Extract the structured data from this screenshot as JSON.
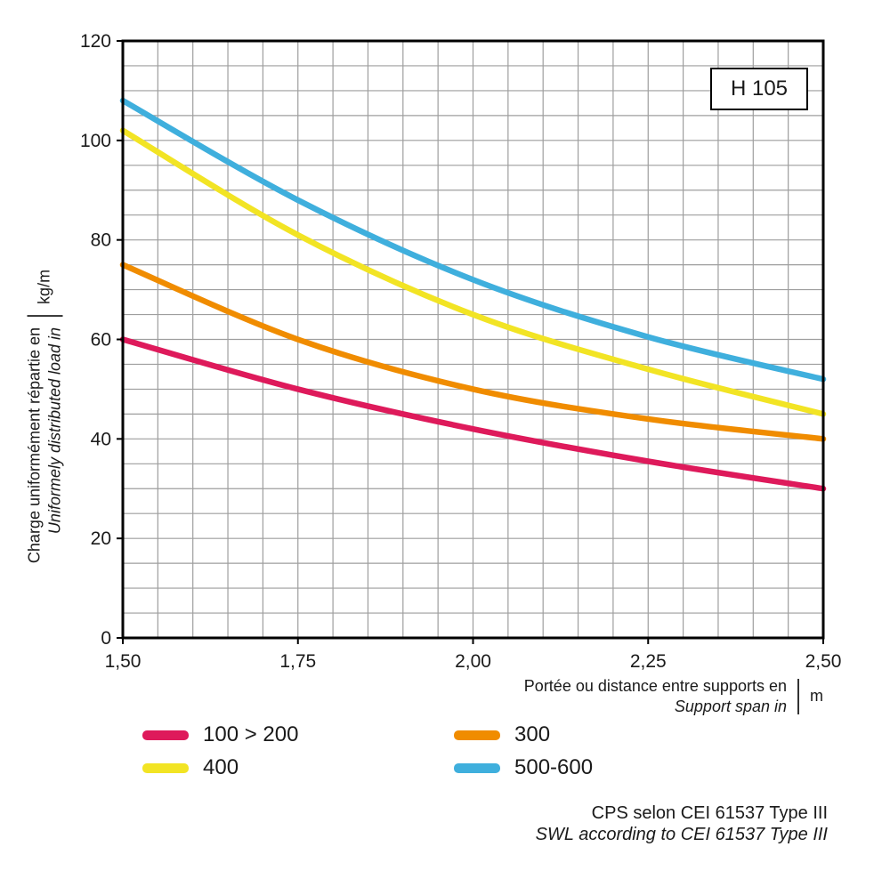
{
  "chart_data": {
    "type": "line",
    "x": [
      1.5,
      1.75,
      2.0,
      2.25,
      2.5
    ],
    "series": [
      {
        "name": "100 > 200",
        "color": "#de1a5b",
        "values": [
          60,
          50,
          42,
          35.5,
          30
        ]
      },
      {
        "name": "300",
        "color": "#f08c00",
        "values": [
          75,
          60,
          50,
          44,
          40
        ]
      },
      {
        "name": "400",
        "color": "#f2e424",
        "values": [
          102,
          81,
          65,
          54,
          45
        ]
      },
      {
        "name": "500-600",
        "color": "#3fafdd",
        "values": [
          108,
          88,
          72,
          60.5,
          52
        ]
      }
    ],
    "title": "H 105",
    "xlabel": "Portée ou distance entre supports en / Support span in (m)",
    "ylabel": "Charge uniformément répartie en / Uniformely distributed load in (kg/m)",
    "xlim": [
      1.5,
      2.5
    ],
    "ylim": [
      0,
      120
    ],
    "x_ticks": [
      {
        "v": 1.5,
        "label": "1,50"
      },
      {
        "v": 1.75,
        "label": "1,75"
      },
      {
        "v": 2.0,
        "label": "2,00"
      },
      {
        "v": 2.25,
        "label": "2,25"
      },
      {
        "v": 2.5,
        "label": "2,50"
      }
    ],
    "y_ticks": [
      {
        "v": 0,
        "label": "0"
      },
      {
        "v": 20,
        "label": "20"
      },
      {
        "v": 40,
        "label": "40"
      },
      {
        "v": 60,
        "label": "60"
      },
      {
        "v": 80,
        "label": "80"
      },
      {
        "v": 100,
        "label": "100"
      },
      {
        "v": 120,
        "label": "120"
      }
    ],
    "x_minor_step": 0.05,
    "y_minor_step": 5,
    "grid": true,
    "legend_position": "bottom"
  },
  "badge": {
    "label": "H 105"
  },
  "y_axis": {
    "title_fr": "Charge uniformément répartie en",
    "title_en": "Uniformely distributed load in",
    "unit": "kg/m"
  },
  "x_axis": {
    "title_fr": "Portée ou distance entre supports en",
    "title_en": "Support span in",
    "unit": "m"
  },
  "legend": {
    "items": [
      {
        "label": "100 > 200",
        "color": "#de1a5b"
      },
      {
        "label": "300",
        "color": "#f08c00"
      },
      {
        "label": "400",
        "color": "#f2e424"
      },
      {
        "label": "500-600",
        "color": "#3fafdd"
      }
    ]
  },
  "footer": {
    "line1": "CPS selon CEI 61537 Type III",
    "line2": "SWL according to CEI 61537 Type III"
  }
}
